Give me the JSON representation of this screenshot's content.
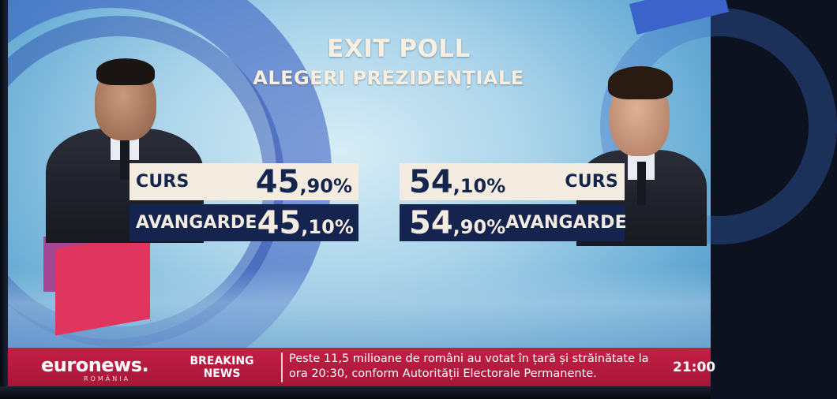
{
  "title": "EXIT POLL",
  "subtitle": "ALEGERI PREZIDENȚIALE",
  "candidates": [
    {
      "side": "left",
      "rows": [
        {
          "label": "CURS",
          "int": "45",
          "dec": ",90%"
        },
        {
          "label": "AVANGARDE",
          "int": "45",
          "dec": ",10%"
        }
      ]
    },
    {
      "side": "right",
      "rows": [
        {
          "label": "CURS",
          "int": "54",
          "dec": ",10%"
        },
        {
          "label": "AVANGARDE",
          "int": "54",
          "dec": ",90%"
        }
      ]
    }
  ],
  "ticker": {
    "logo_main": "euronews.",
    "logo_sub": "ROMÂNIA",
    "breaking": "BREAKING NEWS",
    "headline": "Peste 11,5 milioane de români au votat în țară și străinătate la ora 20:30, conform Autorității Electorale Permanente.",
    "time": "21:00"
  },
  "colors": {
    "ticker_bg": "#c41f43",
    "panel_light": "#f4ece1",
    "panel_dark": "#15244f",
    "title_text": "#f7efe2"
  }
}
